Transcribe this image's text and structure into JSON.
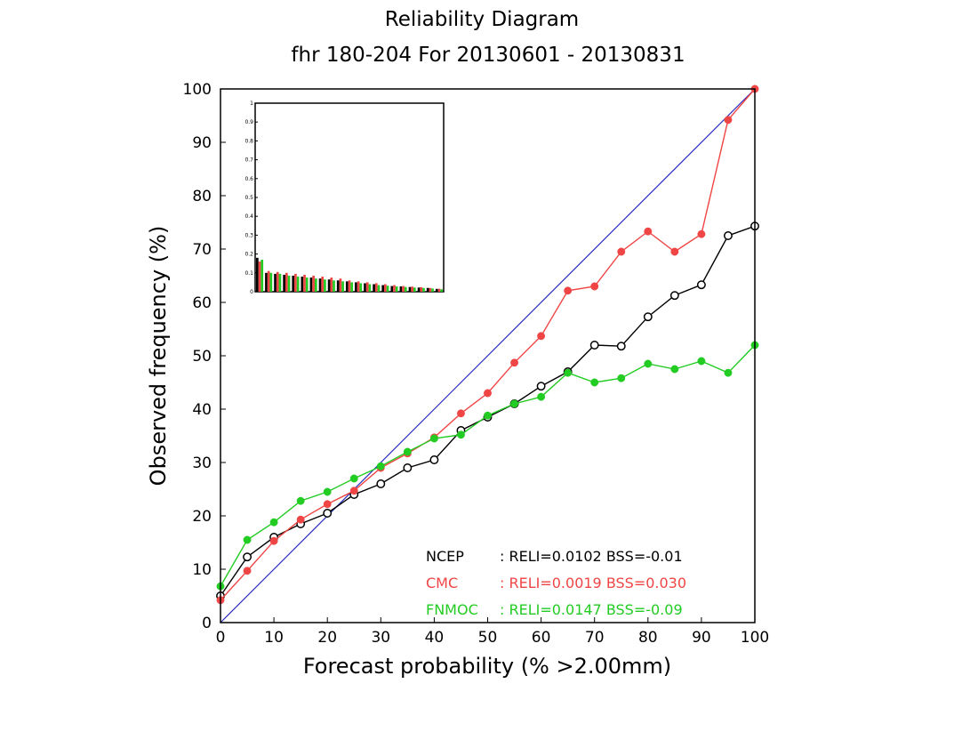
{
  "chart_data": {
    "type": "line",
    "title": "Reliability Diagram",
    "subtitle": "fhr 180-204 For 20130601 - 20130831",
    "xlabel": "Forecast probability (% >2.00mm)",
    "ylabel": "Observed frequency (%)",
    "xlim": [
      0,
      100
    ],
    "ylim": [
      0,
      100
    ],
    "xticks": [
      "0",
      "10",
      "20",
      "30",
      "40",
      "50",
      "60",
      "70",
      "80",
      "90",
      "100"
    ],
    "yticks": [
      "0",
      "10",
      "20",
      "30",
      "40",
      "50",
      "60",
      "70",
      "80",
      "90",
      "100"
    ],
    "grid": false,
    "diagonal": {
      "from": [
        0,
        0
      ],
      "to": [
        100,
        100
      ],
      "color": "#2a2fbf"
    },
    "x": [
      0,
      5,
      10,
      15,
      20,
      25,
      30,
      35,
      40,
      45,
      50,
      55,
      60,
      65,
      70,
      75,
      80,
      85,
      90,
      95,
      100
    ],
    "series": [
      {
        "name": "NCEP",
        "color": "#000000",
        "marker": "open-circle",
        "values": [
          5,
          12.3,
          16,
          18.5,
          20.5,
          24,
          26,
          29,
          30.5,
          36,
          38.5,
          41,
          44.3,
          47,
          52,
          51.8,
          57.3,
          61.3,
          63.3,
          72.5,
          74.3
        ]
      },
      {
        "name": "CMC",
        "color": "#f04545",
        "marker": "filled-circle",
        "values": [
          4.2,
          9.7,
          15.3,
          19.3,
          22.2,
          24.7,
          29,
          31.7,
          34.7,
          39.2,
          43,
          48.7,
          53.7,
          62.2,
          63,
          69.5,
          73.3,
          69.5,
          72.8,
          94.2,
          100
        ]
      },
      {
        "name": "FNMOC",
        "color": "#22cc22",
        "marker": "filled-circle",
        "values": [
          6.8,
          15.5,
          18.8,
          22.8,
          24.5,
          27,
          29.3,
          32,
          34.5,
          35.2,
          38.8,
          41,
          42.3,
          46.8,
          45,
          45.8,
          48.5,
          47.5,
          49,
          46.8,
          52
        ]
      }
    ],
    "legend": {
      "placement": "bottom-right",
      "entries": [
        {
          "name": "NCEP",
          "stats": ": RELI=0.0102 BSS=-0.01",
          "color": "#000000"
        },
        {
          "name": "CMC",
          "stats": ": RELI=0.0019 BSS=0.030",
          "color": "#f04545"
        },
        {
          "name": "FNMOC",
          "stats": ": RELI=0.0147 BSS=-0.09",
          "color": "#22cc22"
        }
      ]
    },
    "inset": {
      "type": "bar",
      "placement": "top-left",
      "ylim": [
        0,
        1
      ],
      "yticks": [
        "0",
        "0.1",
        "0.2",
        "0.3",
        "0.4",
        "0.5",
        "0.6",
        "0.7",
        "0.8",
        "0.9",
        "1"
      ],
      "series": [
        {
          "name": "NCEP",
          "color": "#000000",
          "values": [
            0.18,
            0.1,
            0.095,
            0.09,
            0.085,
            0.08,
            0.075,
            0.07,
            0.065,
            0.06,
            0.055,
            0.05,
            0.045,
            0.04,
            0.035,
            0.03,
            0.028,
            0.025,
            0.022,
            0.02,
            0.015
          ]
        },
        {
          "name": "CMC",
          "color": "#f04545",
          "values": [
            0.16,
            0.11,
            0.105,
            0.1,
            0.095,
            0.09,
            0.085,
            0.08,
            0.075,
            0.07,
            0.06,
            0.055,
            0.05,
            0.045,
            0.04,
            0.035,
            0.03,
            0.027,
            0.024,
            0.02,
            0.016
          ]
        },
        {
          "name": "FNMOC",
          "color": "#22cc22",
          "values": [
            0.17,
            0.1,
            0.095,
            0.085,
            0.08,
            0.075,
            0.07,
            0.065,
            0.06,
            0.055,
            0.05,
            0.045,
            0.04,
            0.035,
            0.032,
            0.028,
            0.025,
            0.022,
            0.02,
            0.017,
            0.013
          ]
        }
      ]
    }
  }
}
